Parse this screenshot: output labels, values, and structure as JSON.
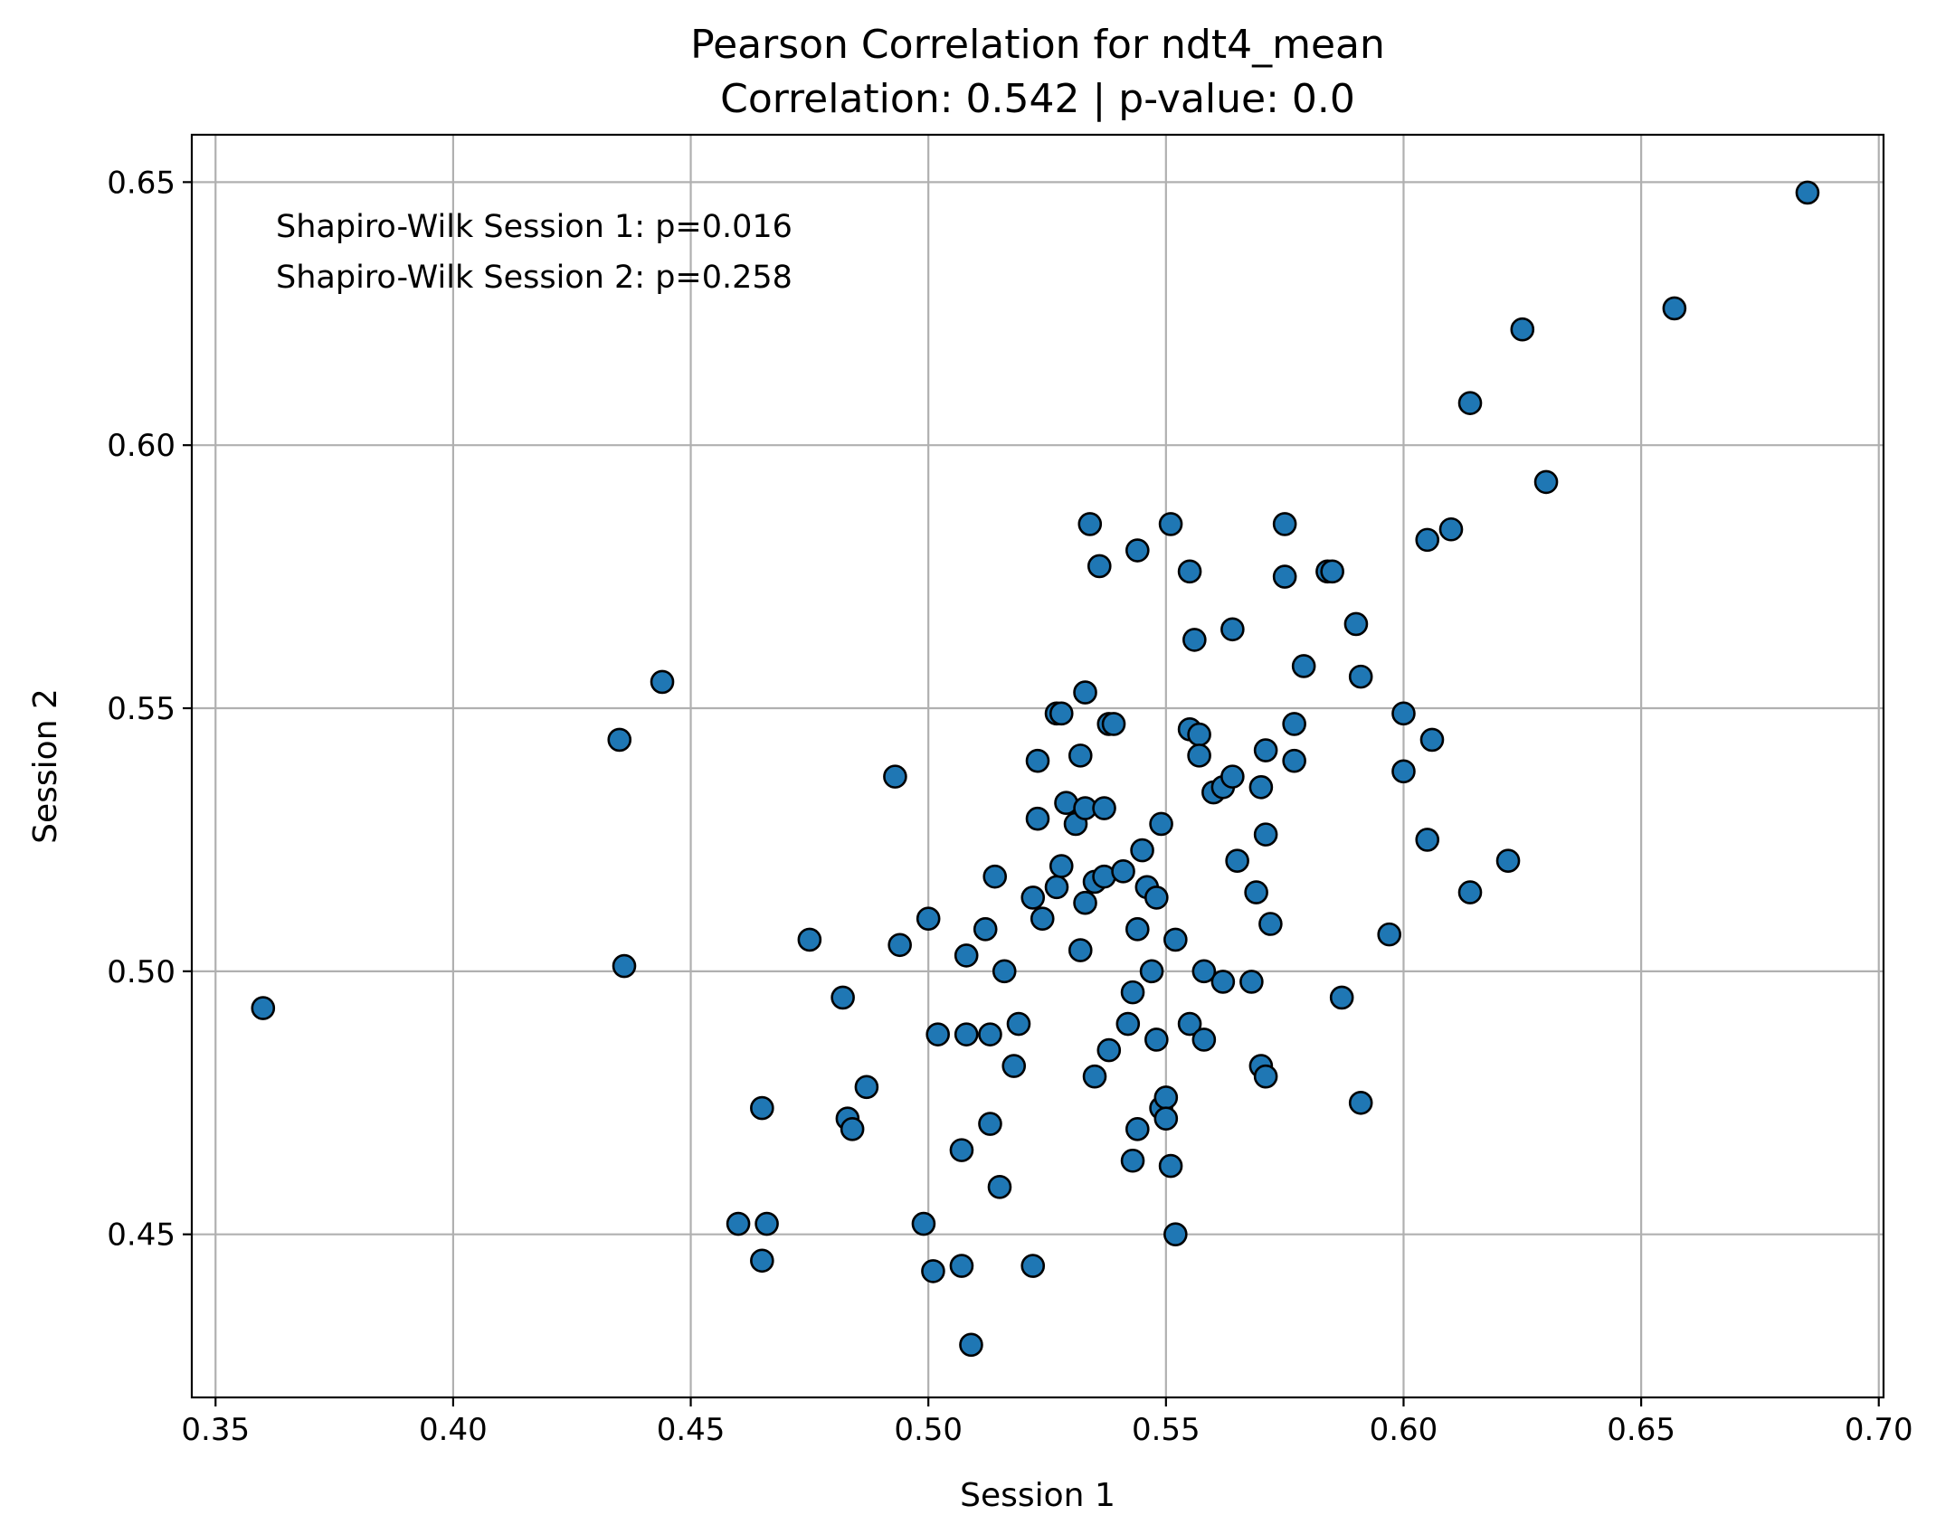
{
  "chart_data": {
    "type": "scatter",
    "title": "Pearson Correlation for ndt4_mean",
    "subtitle": "Correlation: 0.542 | p-value: 0.0",
    "xlabel": "Session 1",
    "ylabel": "Session 2",
    "xlim": [
      0.345,
      0.701
    ],
    "ylim": [
      0.419,
      0.659
    ],
    "xticks": [
      "0.35",
      "0.40",
      "0.45",
      "0.50",
      "0.55",
      "0.60",
      "0.65",
      "0.70"
    ],
    "yticks": [
      "0.45",
      "0.50",
      "0.55",
      "0.60",
      "0.65"
    ],
    "grid": true,
    "annotations": [
      "Shapiro-Wilk Session 1: p=0.016",
      "Shapiro-Wilk Session 2: p=0.258"
    ],
    "marker_color": "#1f77b4",
    "marker_edge": "#000000",
    "points": [
      [
        0.36,
        0.493
      ],
      [
        0.435,
        0.544
      ],
      [
        0.436,
        0.501
      ],
      [
        0.444,
        0.555
      ],
      [
        0.46,
        0.452
      ],
      [
        0.465,
        0.474
      ],
      [
        0.465,
        0.445
      ],
      [
        0.466,
        0.452
      ],
      [
        0.475,
        0.506
      ],
      [
        0.482,
        0.495
      ],
      [
        0.483,
        0.472
      ],
      [
        0.484,
        0.47
      ],
      [
        0.487,
        0.478
      ],
      [
        0.493,
        0.537
      ],
      [
        0.494,
        0.505
      ],
      [
        0.499,
        0.452
      ],
      [
        0.5,
        0.51
      ],
      [
        0.501,
        0.443
      ],
      [
        0.502,
        0.488
      ],
      [
        0.507,
        0.466
      ],
      [
        0.507,
        0.444
      ],
      [
        0.508,
        0.503
      ],
      [
        0.508,
        0.488
      ],
      [
        0.509,
        0.429
      ],
      [
        0.512,
        0.508
      ],
      [
        0.513,
        0.488
      ],
      [
        0.513,
        0.471
      ],
      [
        0.514,
        0.518
      ],
      [
        0.515,
        0.459
      ],
      [
        0.516,
        0.5
      ],
      [
        0.518,
        0.482
      ],
      [
        0.519,
        0.49
      ],
      [
        0.522,
        0.444
      ],
      [
        0.522,
        0.514
      ],
      [
        0.523,
        0.54
      ],
      [
        0.523,
        0.529
      ],
      [
        0.524,
        0.51
      ],
      [
        0.527,
        0.516
      ],
      [
        0.527,
        0.549
      ],
      [
        0.528,
        0.52
      ],
      [
        0.528,
        0.549
      ],
      [
        0.529,
        0.532
      ],
      [
        0.531,
        0.528
      ],
      [
        0.532,
        0.541
      ],
      [
        0.532,
        0.504
      ],
      [
        0.533,
        0.553
      ],
      [
        0.533,
        0.531
      ],
      [
        0.533,
        0.513
      ],
      [
        0.534,
        0.585
      ],
      [
        0.535,
        0.517
      ],
      [
        0.535,
        0.48
      ],
      [
        0.536,
        0.577
      ],
      [
        0.537,
        0.518
      ],
      [
        0.537,
        0.531
      ],
      [
        0.538,
        0.547
      ],
      [
        0.538,
        0.485
      ],
      [
        0.539,
        0.547
      ],
      [
        0.541,
        0.519
      ],
      [
        0.542,
        0.49
      ],
      [
        0.543,
        0.496
      ],
      [
        0.543,
        0.464
      ],
      [
        0.544,
        0.58
      ],
      [
        0.544,
        0.508
      ],
      [
        0.544,
        0.47
      ],
      [
        0.545,
        0.523
      ],
      [
        0.546,
        0.516
      ],
      [
        0.547,
        0.5
      ],
      [
        0.548,
        0.487
      ],
      [
        0.548,
        0.514
      ],
      [
        0.549,
        0.528
      ],
      [
        0.549,
        0.474
      ],
      [
        0.55,
        0.476
      ],
      [
        0.55,
        0.472
      ],
      [
        0.551,
        0.585
      ],
      [
        0.551,
        0.463
      ],
      [
        0.552,
        0.506
      ],
      [
        0.552,
        0.45
      ],
      [
        0.555,
        0.546
      ],
      [
        0.555,
        0.49
      ],
      [
        0.555,
        0.576
      ],
      [
        0.556,
        0.563
      ],
      [
        0.557,
        0.545
      ],
      [
        0.557,
        0.541
      ],
      [
        0.558,
        0.487
      ],
      [
        0.558,
        0.5
      ],
      [
        0.56,
        0.534
      ],
      [
        0.562,
        0.535
      ],
      [
        0.562,
        0.498
      ],
      [
        0.564,
        0.565
      ],
      [
        0.564,
        0.537
      ],
      [
        0.565,
        0.521
      ],
      [
        0.568,
        0.498
      ],
      [
        0.569,
        0.515
      ],
      [
        0.57,
        0.535
      ],
      [
        0.57,
        0.482
      ],
      [
        0.571,
        0.542
      ],
      [
        0.571,
        0.526
      ],
      [
        0.571,
        0.48
      ],
      [
        0.572,
        0.509
      ],
      [
        0.575,
        0.585
      ],
      [
        0.575,
        0.575
      ],
      [
        0.577,
        0.547
      ],
      [
        0.577,
        0.54
      ],
      [
        0.579,
        0.558
      ],
      [
        0.584,
        0.576
      ],
      [
        0.585,
        0.576
      ],
      [
        0.587,
        0.495
      ],
      [
        0.59,
        0.566
      ],
      [
        0.591,
        0.556
      ],
      [
        0.591,
        0.475
      ],
      [
        0.597,
        0.507
      ],
      [
        0.6,
        0.549
      ],
      [
        0.6,
        0.538
      ],
      [
        0.605,
        0.582
      ],
      [
        0.605,
        0.525
      ],
      [
        0.606,
        0.544
      ],
      [
        0.61,
        0.584
      ],
      [
        0.614,
        0.608
      ],
      [
        0.614,
        0.515
      ],
      [
        0.622,
        0.521
      ],
      [
        0.625,
        0.622
      ],
      [
        0.63,
        0.593
      ],
      [
        0.657,
        0.626
      ],
      [
        0.685,
        0.648
      ]
    ]
  }
}
